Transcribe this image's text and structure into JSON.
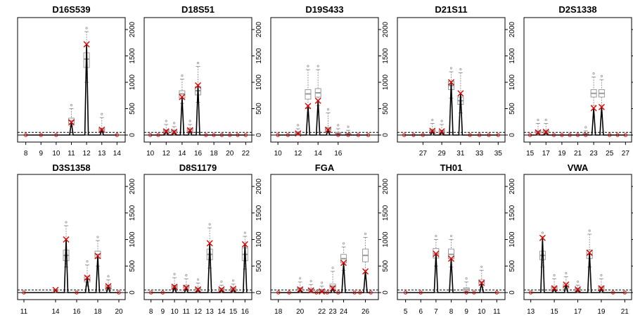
{
  "chart_data": [
    {
      "type": "line",
      "title": "D16S539",
      "x_ticks": [
        "8",
        "9",
        "10",
        "11",
        "12",
        "13",
        "14"
      ],
      "xlim": [
        7.6,
        14.4
      ],
      "ylim": [
        0,
        2200
      ],
      "y_ticks": [
        "0",
        "500",
        "1000",
        "1500",
        "2000"
      ],
      "threshold": 50,
      "alleles": [
        {
          "x": 8,
          "y": 0
        },
        {
          "x": 9,
          "y": 0
        },
        {
          "x": 10,
          "y": 0
        },
        {
          "x": 11,
          "y": 240
        },
        {
          "x": 12,
          "y": 1720
        },
        {
          "x": 13,
          "y": 100
        },
        {
          "x": 14,
          "y": 0
        }
      ],
      "boxes": [
        {
          "x": 11,
          "q1": 220,
          "med": 270,
          "q3": 320,
          "lo": 170,
          "hi": 500
        },
        {
          "x": 12,
          "q1": 1280,
          "med": 1440,
          "q3": 1560,
          "lo": 1000,
          "hi": 1960
        },
        {
          "x": 13,
          "q1": 70,
          "med": 100,
          "q3": 130,
          "lo": 40,
          "hi": 330
        }
      ]
    },
    {
      "type": "line",
      "title": "D18S51",
      "x_ticks": [
        "10",
        "12",
        "14",
        "16",
        "18",
        "20",
        "22"
      ],
      "xlim": [
        9.5,
        22.5
      ],
      "ylim": [
        0,
        2200
      ],
      "y_ticks": [
        "0",
        "500",
        "1000",
        "1500",
        "2000"
      ],
      "threshold": 50,
      "alleles": [
        {
          "x": 10,
          "y": 0
        },
        {
          "x": 11,
          "y": 0
        },
        {
          "x": 12,
          "y": 70
        },
        {
          "x": 13,
          "y": 60
        },
        {
          "x": 14,
          "y": 720
        },
        {
          "x": 15,
          "y": 90
        },
        {
          "x": 16,
          "y": 940
        },
        {
          "x": 17,
          "y": 0
        },
        {
          "x": 18,
          "y": 0
        },
        {
          "x": 19,
          "y": 0
        },
        {
          "x": 20,
          "y": 0
        },
        {
          "x": 21,
          "y": 0
        },
        {
          "x": 22,
          "y": 0
        }
      ],
      "boxes": [
        {
          "x": 12,
          "q1": 60,
          "med": 80,
          "q3": 100,
          "lo": 40,
          "hi": 200
        },
        {
          "x": 13,
          "q1": 50,
          "med": 70,
          "q3": 90,
          "lo": 30,
          "hi": 160
        },
        {
          "x": 14,
          "q1": 700,
          "med": 780,
          "q3": 840,
          "lo": 600,
          "hi": 1060
        },
        {
          "x": 15,
          "q1": 70,
          "med": 100,
          "q3": 130,
          "lo": 40,
          "hi": 200
        },
        {
          "x": 16,
          "q1": 760,
          "med": 840,
          "q3": 920,
          "lo": 620,
          "hi": 1300
        }
      ]
    },
    {
      "type": "line",
      "title": "D19S433",
      "x_ticks": [
        "10",
        "12",
        "14",
        "16"
      ],
      "xlim": [
        9.5,
        19.8
      ],
      "ylim": [
        0,
        2200
      ],
      "y_ticks": [
        "0",
        "500",
        "1000",
        "1500",
        "2000"
      ],
      "threshold": 50,
      "alleles": [
        {
          "x": 10,
          "y": 0
        },
        {
          "x": 11,
          "y": 0
        },
        {
          "x": 12,
          "y": 30
        },
        {
          "x": 13,
          "y": 550
        },
        {
          "x": 14,
          "y": 650
        },
        {
          "x": 15,
          "y": 100
        },
        {
          "x": 16,
          "y": 0
        },
        {
          "x": 17,
          "y": 0
        },
        {
          "x": 18,
          "y": 0
        },
        {
          "x": 19,
          "y": 0
        }
      ],
      "boxes": [
        {
          "x": 12,
          "q1": 20,
          "med": 40,
          "q3": 60,
          "lo": 10,
          "hi": 120
        },
        {
          "x": 13,
          "q1": 680,
          "med": 780,
          "q3": 860,
          "lo": 500,
          "hi": 1240
        },
        {
          "x": 14,
          "q1": 720,
          "med": 800,
          "q3": 880,
          "lo": 560,
          "hi": 1240
        },
        {
          "x": 15,
          "q1": 80,
          "med": 110,
          "q3": 140,
          "lo": 40,
          "hi": 420
        },
        {
          "x": 16,
          "q1": 20,
          "med": 30,
          "q3": 50,
          "lo": 10,
          "hi": 120
        },
        {
          "x": 17,
          "q1": 10,
          "med": 20,
          "q3": 30,
          "lo": 0,
          "hi": 90
        }
      ]
    },
    {
      "type": "line",
      "title": "D21S11",
      "x_ticks": [
        "27",
        "29",
        "31",
        "33",
        "35"
      ],
      "xlim": [
        24.5,
        35.5
      ],
      "ylim": [
        0,
        2200
      ],
      "y_ticks": [
        "0",
        "500",
        "1000",
        "1500",
        "2000"
      ],
      "threshold": 50,
      "alleles": [
        {
          "x": 25,
          "y": 0
        },
        {
          "x": 26,
          "y": 0
        },
        {
          "x": 27,
          "y": 0
        },
        {
          "x": 28,
          "y": 80
        },
        {
          "x": 29,
          "y": 70
        },
        {
          "x": 30,
          "y": 1000
        },
        {
          "x": 31,
          "y": 790
        },
        {
          "x": 32,
          "y": 0
        },
        {
          "x": 33,
          "y": 0
        },
        {
          "x": 34,
          "y": 0
        },
        {
          "x": 35,
          "y": 0
        }
      ],
      "boxes": [
        {
          "x": 28,
          "q1": 60,
          "med": 80,
          "q3": 100,
          "lo": 30,
          "hi": 220
        },
        {
          "x": 29,
          "q1": 50,
          "med": 70,
          "q3": 90,
          "lo": 20,
          "hi": 200
        },
        {
          "x": 30,
          "q1": 860,
          "med": 940,
          "q3": 1020,
          "lo": 700,
          "hi": 1200
        },
        {
          "x": 31,
          "q1": 580,
          "med": 650,
          "q3": 720,
          "lo": 420,
          "hi": 1180
        }
      ]
    },
    {
      "type": "line",
      "title": "D2S1338",
      "x_ticks": [
        "15",
        "17",
        "19",
        "21",
        "23",
        "25",
        "27"
      ],
      "xlim": [
        14.5,
        27.5
      ],
      "ylim": [
        0,
        2200
      ],
      "y_ticks": [
        "0",
        "500",
        "1000",
        "1500",
        "2000"
      ],
      "threshold": 50,
      "alleles": [
        {
          "x": 15,
          "y": 0
        },
        {
          "x": 16,
          "y": 50
        },
        {
          "x": 17,
          "y": 60
        },
        {
          "x": 18,
          "y": 0
        },
        {
          "x": 19,
          "y": 0
        },
        {
          "x": 20,
          "y": 0
        },
        {
          "x": 21,
          "y": 0
        },
        {
          "x": 22,
          "y": 0
        },
        {
          "x": 23,
          "y": 510
        },
        {
          "x": 24,
          "y": 530
        },
        {
          "x": 25,
          "y": 0
        },
        {
          "x": 26,
          "y": 0
        },
        {
          "x": 27,
          "y": 0
        }
      ],
      "boxes": [
        {
          "x": 16,
          "q1": 40,
          "med": 60,
          "q3": 80,
          "lo": 20,
          "hi": 220
        },
        {
          "x": 17,
          "q1": 50,
          "med": 70,
          "q3": 90,
          "lo": 20,
          "hi": 220
        },
        {
          "x": 22,
          "q1": 10,
          "med": 20,
          "q3": 30,
          "lo": 0,
          "hi": 80
        },
        {
          "x": 23,
          "q1": 720,
          "med": 790,
          "q3": 860,
          "lo": 560,
          "hi": 1100
        },
        {
          "x": 24,
          "q1": 720,
          "med": 790,
          "q3": 860,
          "lo": 560,
          "hi": 1050
        }
      ]
    },
    {
      "type": "line",
      "title": "D3S1358",
      "x_ticks": [
        "11",
        "14",
        "16",
        "18",
        "20"
      ],
      "xlim": [
        10.6,
        20.4
      ],
      "ylim": [
        0,
        2200
      ],
      "y_ticks": [
        "0",
        "500",
        "1000",
        "1500",
        "2000"
      ],
      "threshold": 50,
      "alleles": [
        {
          "x": 11,
          "y": 0
        },
        {
          "x": 14,
          "y": 50
        },
        {
          "x": 15,
          "y": 1000
        },
        {
          "x": 16,
          "y": 0
        },
        {
          "x": 17,
          "y": 280
        },
        {
          "x": 18,
          "y": 690
        },
        {
          "x": 19,
          "y": 120
        },
        {
          "x": 20,
          "y": 0
        }
      ],
      "boxes": [
        {
          "x": 15,
          "q1": 600,
          "med": 700,
          "q3": 800,
          "lo": 480,
          "hi": 1260
        },
        {
          "x": 17,
          "q1": 200,
          "med": 250,
          "q3": 300,
          "lo": 120,
          "hi": 520
        },
        {
          "x": 18,
          "q1": 640,
          "med": 720,
          "q3": 780,
          "lo": 500,
          "hi": 980
        },
        {
          "x": 19,
          "q1": 80,
          "med": 110,
          "q3": 140,
          "lo": 40,
          "hi": 240
        }
      ]
    },
    {
      "type": "line",
      "title": "D8S1179",
      "x_ticks": [
        "8",
        "9",
        "10",
        "11",
        "12",
        "13",
        "14",
        "15",
        "16"
      ],
      "xlim": [
        7.6,
        16.4
      ],
      "ylim": [
        0,
        2200
      ],
      "y_ticks": [
        "0",
        "500",
        "1000",
        "1500",
        "2000"
      ],
      "threshold": 50,
      "alleles": [
        {
          "x": 8,
          "y": 0
        },
        {
          "x": 9,
          "y": 0
        },
        {
          "x": 10,
          "y": 110
        },
        {
          "x": 11,
          "y": 90
        },
        {
          "x": 12,
          "y": 60
        },
        {
          "x": 13,
          "y": 930
        },
        {
          "x": 14,
          "y": 60
        },
        {
          "x": 15,
          "y": 70
        },
        {
          "x": 16,
          "y": 910
        }
      ],
      "boxes": [
        {
          "x": 10,
          "q1": 80,
          "med": 110,
          "q3": 140,
          "lo": 40,
          "hi": 280
        },
        {
          "x": 11,
          "q1": 80,
          "med": 110,
          "q3": 140,
          "lo": 40,
          "hi": 260
        },
        {
          "x": 12,
          "q1": 50,
          "med": 70,
          "q3": 90,
          "lo": 20,
          "hi": 180
        },
        {
          "x": 13,
          "q1": 620,
          "med": 720,
          "q3": 820,
          "lo": 460,
          "hi": 1220
        },
        {
          "x": 14,
          "q1": 40,
          "med": 60,
          "q3": 80,
          "lo": 20,
          "hi": 140
        },
        {
          "x": 15,
          "q1": 50,
          "med": 70,
          "q3": 90,
          "lo": 20,
          "hi": 160
        },
        {
          "x": 16,
          "q1": 600,
          "med": 720,
          "q3": 840,
          "lo": 440,
          "hi": 1060
        }
      ]
    },
    {
      "type": "line",
      "title": "FGA",
      "x_ticks": [
        "18",
        "20",
        "22",
        "23",
        "24",
        "26"
      ],
      "xlim": [
        17.5,
        27.0
      ],
      "ylim": [
        0,
        2200
      ],
      "y_ticks": [
        "0",
        "500",
        "1000",
        "1500",
        "2000"
      ],
      "threshold": 50,
      "alleles": [
        {
          "x": 18,
          "y": 0
        },
        {
          "x": 19,
          "y": 0
        },
        {
          "x": 20,
          "y": 60
        },
        {
          "x": 21,
          "y": 40
        },
        {
          "x": 21.5,
          "y": 0
        },
        {
          "x": 22,
          "y": 20
        },
        {
          "x": 22.5,
          "y": 0
        },
        {
          "x": 23,
          "y": 80
        },
        {
          "x": 23.5,
          "y": 0
        },
        {
          "x": 24,
          "y": 560
        },
        {
          "x": 25,
          "y": 0
        },
        {
          "x": 25.5,
          "y": 0
        },
        {
          "x": 26,
          "y": 400
        },
        {
          "x": 26.5,
          "y": 0
        }
      ],
      "boxes": [
        {
          "x": 20,
          "q1": 50,
          "med": 70,
          "q3": 90,
          "lo": 20,
          "hi": 200
        },
        {
          "x": 21,
          "q1": 30,
          "med": 50,
          "q3": 70,
          "lo": 10,
          "hi": 150
        },
        {
          "x": 22,
          "q1": 20,
          "med": 40,
          "q3": 60,
          "lo": 10,
          "hi": 120
        },
        {
          "x": 23,
          "q1": 80,
          "med": 120,
          "q3": 160,
          "lo": 40,
          "hi": 400
        },
        {
          "x": 24,
          "q1": 560,
          "med": 640,
          "q3": 720,
          "lo": 420,
          "hi": 860
        },
        {
          "x": 26,
          "q1": 580,
          "med": 700,
          "q3": 820,
          "lo": 420,
          "hi": 1040
        }
      ]
    },
    {
      "type": "line",
      "title": "TH01",
      "x_ticks": [
        "5",
        "6",
        "7",
        "8",
        "9",
        "10",
        "11"
      ],
      "xlim": [
        4.6,
        11.4
      ],
      "ylim": [
        0,
        2200
      ],
      "y_ticks": [
        "0",
        "500",
        "1000",
        "1500",
        "2000"
      ],
      "threshold": 50,
      "alleles": [
        {
          "x": 5,
          "y": 0
        },
        {
          "x": 6,
          "y": 0
        },
        {
          "x": 7,
          "y": 730
        },
        {
          "x": 8,
          "y": 640
        },
        {
          "x": 9,
          "y": 0
        },
        {
          "x": 9.5,
          "y": 0
        },
        {
          "x": 10,
          "y": 180
        },
        {
          "x": 11,
          "y": 0
        }
      ],
      "boxes": [
        {
          "x": 7,
          "q1": 650,
          "med": 730,
          "q3": 830,
          "lo": 500,
          "hi": 1000
        },
        {
          "x": 8,
          "q1": 640,
          "med": 720,
          "q3": 820,
          "lo": 480,
          "hi": 1000
        },
        {
          "x": 9,
          "q1": 30,
          "med": 60,
          "q3": 90,
          "lo": 10,
          "hi": 200
        },
        {
          "x": 10,
          "q1": 160,
          "med": 200,
          "q3": 240,
          "lo": 100,
          "hi": 420
        }
      ]
    },
    {
      "type": "line",
      "title": "VWA",
      "x_ticks": [
        "13",
        "15",
        "17",
        "19",
        "21"
      ],
      "xlim": [
        12.6,
        21.4
      ],
      "ylim": [
        0,
        2200
      ],
      "y_ticks": [
        "0",
        "500",
        "1000",
        "1500",
        "2000"
      ],
      "threshold": 50,
      "alleles": [
        {
          "x": 13,
          "y": 0
        },
        {
          "x": 14,
          "y": 1030
        },
        {
          "x": 15,
          "y": 80
        },
        {
          "x": 16,
          "y": 150
        },
        {
          "x": 17,
          "y": 60
        },
        {
          "x": 18,
          "y": 750
        },
        {
          "x": 19,
          "y": 80
        },
        {
          "x": 20,
          "y": 0
        },
        {
          "x": 21,
          "y": 0
        }
      ],
      "boxes": [
        {
          "x": 14,
          "q1": 620,
          "med": 700,
          "q3": 780,
          "lo": 480,
          "hi": 1060
        },
        {
          "x": 15,
          "q1": 60,
          "med": 90,
          "q3": 120,
          "lo": 30,
          "hi": 260
        },
        {
          "x": 16,
          "q1": 80,
          "med": 120,
          "q3": 160,
          "lo": 40,
          "hi": 300
        },
        {
          "x": 17,
          "q1": 40,
          "med": 60,
          "q3": 80,
          "lo": 20,
          "hi": 140
        },
        {
          "x": 18,
          "q1": 640,
          "med": 720,
          "q3": 800,
          "lo": 480,
          "hi": 1100
        },
        {
          "x": 19,
          "q1": 60,
          "med": 90,
          "q3": 120,
          "lo": 30,
          "hi": 260
        }
      ]
    }
  ]
}
